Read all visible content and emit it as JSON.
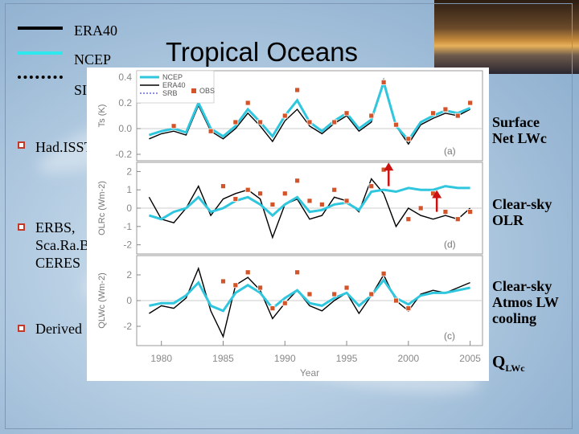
{
  "slide": {
    "title": "Tropical Oceans",
    "legend": [
      {
        "label": "ERA40",
        "color": "#000000",
        "style": "solid"
      },
      {
        "label": "NCEP",
        "color": "#2ee8ee",
        "style": "solid"
      },
      {
        "label": "SI",
        "color": "#000000",
        "style": "dotted"
      }
    ],
    "bullets": [
      {
        "lines": [
          "Had.ISST"
        ]
      },
      {
        "lines": [
          "ERBS,",
          "Sca.Ra.B,",
          "CERES"
        ]
      },
      {
        "lines": [
          "Derived"
        ]
      }
    ],
    "right_labels": [
      {
        "lines": [
          "Surface",
          "Net LWc"
        ]
      },
      {
        "lines": [
          "Clear-sky",
          "OLR"
        ]
      },
      {
        "lines": [
          "Clear-sky",
          "Atmos LW",
          "cooling"
        ]
      }
    ],
    "q_label": {
      "main": "Q",
      "sub": "LWc"
    }
  },
  "chart_data": {
    "type": "line",
    "xlabel": "Year",
    "xlim": [
      1978,
      2006
    ],
    "xticks": [
      1980,
      1985,
      1990,
      1995,
      2000,
      2005
    ],
    "inner_legend": [
      "NCEP",
      "ERA40",
      "SRB",
      "OBS"
    ],
    "colors": {
      "ERA40": "#000000",
      "NCEP": "#2fc6de",
      "SRB": "#6a6ad6",
      "OBS": "#d4542a"
    },
    "panels": [
      {
        "label": "(a)",
        "ylabel": "Ts (K)",
        "ylim": [
          -0.25,
          0.45
        ],
        "yticks": [
          -0.2,
          0.0,
          0.2,
          0.4
        ],
        "series": [
          {
            "name": "ERA40",
            "x": [
              1979,
              1980,
              1981,
              1982,
              1983,
              1984,
              1985,
              1986,
              1987,
              1988,
              1989,
              1990,
              1991,
              1992,
              1993,
              1994,
              1995,
              1996,
              1997,
              1998,
              1999,
              2000,
              2001,
              2002,
              2003,
              2004,
              2005
            ],
            "values": [
              -0.08,
              -0.04,
              -0.02,
              -0.05,
              0.18,
              -0.02,
              -0.08,
              0.0,
              0.12,
              0.02,
              -0.1,
              0.06,
              0.15,
              0.02,
              -0.04,
              0.04,
              0.1,
              -0.02,
              0.05,
              0.38,
              0.02,
              -0.12,
              0.03,
              0.08,
              0.12,
              0.1,
              0.15
            ]
          },
          {
            "name": "NCEP",
            "x": [
              1979,
              1980,
              1981,
              1982,
              1983,
              1984,
              1985,
              1986,
              1987,
              1988,
              1989,
              1990,
              1991,
              1992,
              1993,
              1994,
              1995,
              1996,
              1997,
              1998,
              1999,
              2000,
              2001,
              2002,
              2003,
              2004,
              2005
            ],
            "values": [
              -0.05,
              -0.02,
              0.0,
              -0.03,
              0.2,
              0.0,
              -0.06,
              0.02,
              0.15,
              0.05,
              -0.06,
              0.1,
              0.22,
              0.05,
              -0.02,
              0.06,
              0.12,
              0.0,
              0.07,
              0.36,
              0.02,
              -0.09,
              0.05,
              0.1,
              0.14,
              0.12,
              0.16
            ]
          },
          {
            "name": "OBS",
            "x": [
              1981,
              1983,
              1984,
              1986,
              1987,
              1988,
              1990,
              1991,
              1992,
              1994,
              1995,
              1997,
              1998,
              1999,
              2000,
              2002,
              2003,
              2004,
              2005
            ],
            "values": [
              0.02,
              0.25,
              -0.02,
              0.05,
              0.2,
              0.05,
              0.1,
              0.3,
              0.05,
              0.05,
              0.12,
              0.1,
              0.36,
              0.03,
              -0.08,
              0.12,
              0.15,
              0.1,
              0.2
            ]
          }
        ]
      },
      {
        "label": "(d)",
        "ylabel": "OLRc (Wm-2)",
        "ylim": [
          -2.5,
          2.5
        ],
        "yticks": [
          -2,
          -1,
          0,
          1,
          2
        ],
        "series": [
          {
            "name": "ERA40",
            "x": [
              1979,
              1980,
              1981,
              1982,
              1983,
              1984,
              1985,
              1986,
              1987,
              1988,
              1989,
              1990,
              1991,
              1992,
              1993,
              1994,
              1995,
              1996,
              1997,
              1998,
              1999,
              2000,
              2001,
              2002,
              2003,
              2004,
              2005
            ],
            "values": [
              0.6,
              -0.6,
              -0.8,
              0.0,
              1.2,
              -0.4,
              0.5,
              0.8,
              1.0,
              0.5,
              -1.6,
              0.2,
              0.5,
              -0.6,
              -0.4,
              0.6,
              0.4,
              -0.2,
              1.6,
              0.8,
              -1.0,
              0.0,
              -0.4,
              -0.6,
              -0.4,
              -0.6,
              0.0
            ]
          },
          {
            "name": "NCEP",
            "x": [
              1979,
              1980,
              1981,
              1982,
              1983,
              1984,
              1985,
              1986,
              1987,
              1988,
              1989,
              1990,
              1991,
              1992,
              1993,
              1994,
              1995,
              1996,
              1997,
              1998,
              1999,
              2000,
              2001,
              2002,
              2003,
              2004,
              2005
            ],
            "values": [
              -0.4,
              -0.6,
              -0.2,
              0.0,
              0.6,
              -0.2,
              0.0,
              0.4,
              0.6,
              0.2,
              -0.4,
              0.2,
              0.6,
              -0.2,
              -0.1,
              0.2,
              0.3,
              -0.1,
              0.9,
              1.0,
              0.9,
              1.1,
              1.0,
              1.0,
              1.2,
              1.1,
              1.1
            ]
          },
          {
            "name": "OBS",
            "x": [
              1985,
              1986,
              1987,
              1988,
              1989,
              1990,
              1991,
              1992,
              1993,
              1994,
              1995,
              1997,
              1998,
              2000,
              2001,
              2002,
              2003,
              2004,
              2005
            ],
            "values": [
              1.2,
              0.5,
              1.0,
              0.8,
              0.2,
              0.8,
              1.5,
              0.4,
              0.2,
              1.0,
              0.4,
              1.2,
              2.1,
              -0.6,
              0.0,
              0.8,
              -0.2,
              -0.6,
              -0.2
            ]
          }
        ]
      },
      {
        "label": "(c)",
        "ylabel": "QLWc (Wm-2)",
        "ylim": [
          -3.5,
          3.5
        ],
        "yticks": [
          -2,
          0,
          2
        ],
        "series": [
          {
            "name": "ERA40",
            "x": [
              1979,
              1980,
              1981,
              1982,
              1983,
              1984,
              1985,
              1986,
              1987,
              1988,
              1989,
              1990,
              1991,
              1992,
              1993,
              1994,
              1995,
              1996,
              1997,
              1998,
              1999,
              2000,
              2001,
              2002,
              2003,
              2004,
              2005
            ],
            "values": [
              -1.0,
              -0.4,
              -0.6,
              0.2,
              2.5,
              -0.8,
              -2.8,
              1.2,
              1.8,
              0.8,
              -1.4,
              -0.2,
              0.8,
              -0.4,
              -0.8,
              0.0,
              0.6,
              -1.0,
              0.4,
              2.0,
              0.0,
              -0.8,
              0.5,
              0.8,
              0.6,
              1.0,
              1.4
            ]
          },
          {
            "name": "NCEP",
            "x": [
              1979,
              1980,
              1981,
              1982,
              1983,
              1984,
              1985,
              1986,
              1987,
              1988,
              1989,
              1990,
              1991,
              1992,
              1993,
              1994,
              1995,
              1996,
              1997,
              1998,
              1999,
              2000,
              2001,
              2002,
              2003,
              2004,
              2005
            ],
            "values": [
              -0.4,
              -0.2,
              -0.2,
              0.4,
              1.4,
              -0.4,
              -0.8,
              0.6,
              1.2,
              0.6,
              -0.6,
              0.2,
              0.8,
              -0.2,
              -0.4,
              0.2,
              0.6,
              -0.4,
              0.4,
              1.6,
              0.2,
              -0.3,
              0.4,
              0.6,
              0.6,
              0.8,
              1.0
            ]
          },
          {
            "name": "OBS",
            "x": [
              1985,
              1986,
              1987,
              1988,
              1989,
              1990,
              1991,
              1992,
              1994,
              1995,
              1997,
              1998,
              1999,
              2000
            ],
            "values": [
              1.5,
              1.2,
              2.2,
              1.0,
              -0.6,
              -0.2,
              2.2,
              0.5,
              0.5,
              1.0,
              0.5,
              2.1,
              0.0,
              -0.6
            ]
          }
        ]
      }
    ]
  }
}
